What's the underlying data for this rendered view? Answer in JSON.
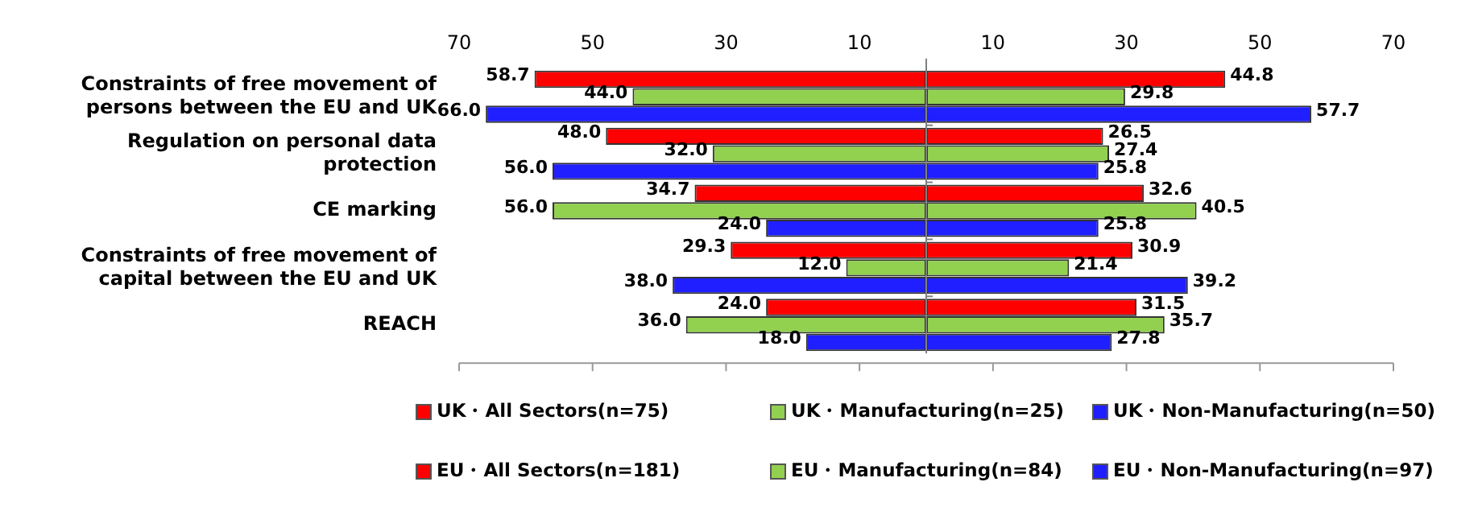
{
  "chart_data": {
    "type": "bar",
    "orientation": "horizontal",
    "categories": [
      "Constraints of free movement of persons between the EU and UK",
      "Regulation on personal data protection",
      "CE marking",
      "Constraints of free movement of capital between the EU and UK",
      "REACH"
    ],
    "xlim": [
      -70,
      70
    ],
    "xticks": [
      {
        "value": -70,
        "label": "70"
      },
      {
        "value": -50,
        "label": "50"
      },
      {
        "value": -30,
        "label": "30"
      },
      {
        "value": -10,
        "label": "10"
      },
      10,
      30,
      50,
      70
    ],
    "grid": false,
    "legend": "bottom",
    "ref_lines": [
      {
        "axis": "x",
        "value": 0,
        "color": "#808080"
      }
    ],
    "series": [
      {
        "name": "UK・All Sectors(n=75)",
        "color": "#ff0000",
        "values": [
          58.7,
          48.0,
          34.7,
          29.3,
          24.0
        ],
        "base": [
          -58.7,
          -48.0,
          -34.7,
          -29.3,
          -24.0
        ],
        "value_labels": [
          "58.7",
          "48.0",
          "34.7",
          "29.3",
          "24.0"
        ]
      },
      {
        "name": "UK・Manufacturing(n=25)",
        "color": "#92d050",
        "values": [
          44.0,
          32.0,
          56.0,
          12.0,
          36.0
        ],
        "base": [
          -44.0,
          -32.0,
          -56.0,
          -12.0,
          -36.0
        ],
        "value_labels": [
          "44.0",
          "32.0",
          "56.0",
          "12.0",
          "36.0"
        ]
      },
      {
        "name": "UK・Non-Manufacturing(n=50)",
        "color": "#1f1fff",
        "values": [
          66.0,
          56.0,
          24.0,
          38.0,
          18.0
        ],
        "base": [
          -66.0,
          -56.0,
          -24.0,
          -38.0,
          -18.0
        ],
        "value_labels": [
          "66.0",
          "56.0",
          "24.0",
          "38.0",
          "18.0"
        ]
      },
      {
        "name": "EU・All Sectors(n=181)",
        "color": "#ff0000",
        "values": [
          44.8,
          26.5,
          32.6,
          30.9,
          31.5
        ],
        "value_labels": [
          "44.8",
          "26.5",
          "32.6",
          "30.9",
          "31.5"
        ]
      },
      {
        "name": "EU・Manufacturing(n=84)",
        "color": "#92d050",
        "values": [
          29.8,
          27.4,
          40.5,
          21.4,
          35.7
        ],
        "value_labels": [
          "29.8",
          "27.4",
          "40.5",
          "21.4",
          "35.7"
        ]
      },
      {
        "name": "EU・Non-Manufacturing(n=97)",
        "color": "#1f1fff",
        "values": [
          57.7,
          25.8,
          25.8,
          39.2,
          27.8
        ],
        "value_labels": [
          "57.7",
          "25.8",
          "25.8",
          "39.2",
          "27.8"
        ]
      }
    ]
  }
}
